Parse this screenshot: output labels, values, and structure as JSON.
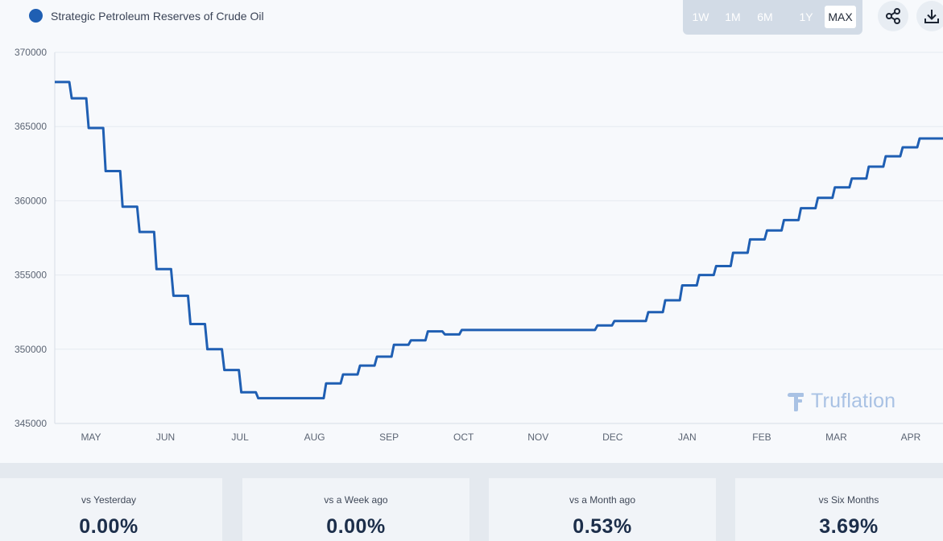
{
  "colors": {
    "accent": "#1f5fb3",
    "legend_dot": "#1f5fb3"
  },
  "legend": {
    "label": "Strategic Petroleum Reserves of Crude Oil",
    "icon": "circle-dot-icon"
  },
  "range_buttons": [
    {
      "label": "1W",
      "active": false
    },
    {
      "label": "1M",
      "active": false
    },
    {
      "label": "6M",
      "active": false
    },
    {
      "label": "1Y",
      "active": false
    },
    {
      "label": "MAX",
      "active": true
    }
  ],
  "toolbar": {
    "share_icon": "share-icon",
    "download_icon": "download-icon"
  },
  "watermark": {
    "text": "Truflation",
    "icon": "truflation-logo-icon"
  },
  "chart_data": {
    "type": "line",
    "title": "Strategic Petroleum Reserves of Crude Oil",
    "xlabel": "",
    "ylabel": "",
    "ylim": [
      345000,
      370000
    ],
    "grid": true,
    "y_ticks": [
      "345000",
      "350000",
      "355000",
      "360000",
      "365000",
      "370000"
    ],
    "x_tick_labels": [
      "MAY",
      "JUN",
      "JUL",
      "AUG",
      "SEP",
      "OCT",
      "NOV",
      "DEC",
      "JAN",
      "FEB",
      "MAR",
      "APR"
    ],
    "series": [
      {
        "name": "Strategic Petroleum Reserves of Crude Oil",
        "week_index": [
          0,
          1,
          2,
          3,
          4,
          5,
          6,
          7,
          8,
          9,
          10,
          11,
          12,
          13,
          14,
          15,
          16,
          17,
          18,
          19,
          20,
          21,
          22,
          23,
          24,
          25,
          26,
          27,
          28,
          29,
          30,
          31,
          32,
          33,
          34,
          35,
          36,
          37,
          38,
          39,
          40,
          41,
          42,
          43,
          44,
          45,
          46,
          47,
          48,
          49,
          50,
          51
        ],
        "values": [
          368000,
          366900,
          364900,
          362000,
          359600,
          357900,
          355400,
          353600,
          351700,
          350000,
          348600,
          347100,
          346700,
          346700,
          346700,
          346700,
          347700,
          348300,
          348900,
          349500,
          350300,
          350600,
          351200,
          351000,
          351300,
          351300,
          351300,
          351300,
          351300,
          351300,
          351300,
          351300,
          351600,
          351900,
          351900,
          352500,
          353300,
          354300,
          355000,
          355600,
          356500,
          357400,
          358000,
          358700,
          359500,
          360200,
          360900,
          361500,
          362300,
          363000,
          363600,
          364200
        ]
      }
    ]
  },
  "stats": [
    {
      "label": "vs Yesterday",
      "value": "0.00%"
    },
    {
      "label": "vs a Week ago",
      "value": "0.00%"
    },
    {
      "label": "vs a Month ago",
      "value": "0.53%"
    },
    {
      "label": "vs Six Months",
      "value": "3.69%"
    }
  ]
}
